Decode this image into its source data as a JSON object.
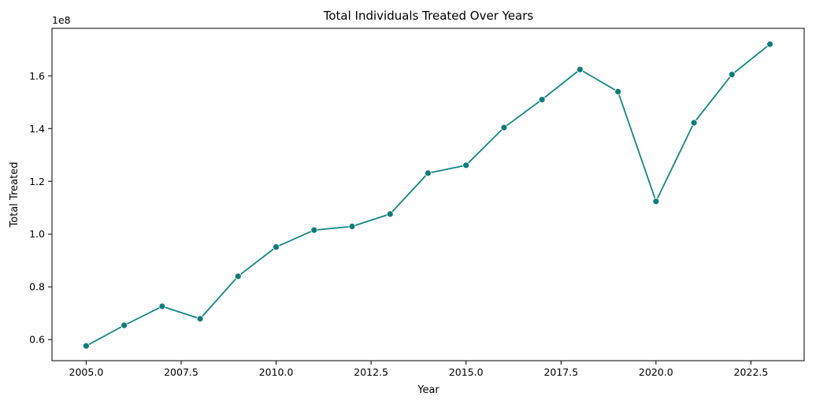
{
  "chart_data": {
    "type": "line",
    "title": "Total Individuals Treated Over Years",
    "xlabel": "Year",
    "ylabel": "Total Treated",
    "y_offset_label": "1e8",
    "y_multiplier": 100000000,
    "xlim": [
      2004.1,
      2023.9
    ],
    "ylim": [
      0.52,
      1.78
    ],
    "x_ticks": [
      {
        "value": 2005.0,
        "label": "2005.0"
      },
      {
        "value": 2007.5,
        "label": "2007.5"
      },
      {
        "value": 2010.0,
        "label": "2010.0"
      },
      {
        "value": 2012.5,
        "label": "2012.5"
      },
      {
        "value": 2015.0,
        "label": "2015.0"
      },
      {
        "value": 2017.5,
        "label": "2017.5"
      },
      {
        "value": 2020.0,
        "label": "2020.0"
      },
      {
        "value": 2022.5,
        "label": "2022.5"
      }
    ],
    "y_ticks": [
      {
        "value": 0.6,
        "label": "0.6"
      },
      {
        "value": 0.8,
        "label": "0.8"
      },
      {
        "value": 1.0,
        "label": "1.0"
      },
      {
        "value": 1.2,
        "label": "1.2"
      },
      {
        "value": 1.4,
        "label": "1.4"
      },
      {
        "value": 1.6,
        "label": "1.6"
      }
    ],
    "grid": false,
    "series": [
      {
        "color": "#138585",
        "marker_color": "#0f7b7b",
        "x": [
          2005,
          2006,
          2007,
          2008,
          2009,
          2010,
          2011,
          2012,
          2013,
          2014,
          2015,
          2016,
          2017,
          2018,
          2019,
          2020,
          2021,
          2022,
          2023
        ],
        "y": [
          0.576,
          0.654,
          0.726,
          0.679,
          0.84,
          0.951,
          1.015,
          1.029,
          1.076,
          1.231,
          1.261,
          1.404,
          1.51,
          1.624,
          1.54,
          1.124,
          1.422,
          1.605,
          1.72
        ]
      }
    ]
  }
}
